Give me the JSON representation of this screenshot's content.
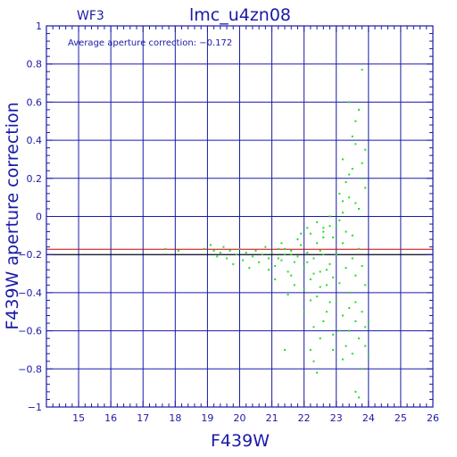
{
  "panel_label": "WF3",
  "annotation": "Average aperture correction:  −0.172",
  "chart_data": {
    "type": "scatter",
    "title": "lmc_u4zn08",
    "xlabel": "F439W",
    "ylabel": "F439W aperture correction",
    "xlim": [
      14,
      26
    ],
    "ylim": [
      -1,
      1
    ],
    "xticks": [
      15,
      16,
      17,
      18,
      19,
      20,
      21,
      22,
      23,
      24,
      25,
      26
    ],
    "yticks": [
      -1,
      -0.8,
      -0.6,
      -0.4,
      -0.2,
      0,
      0.2,
      0.4,
      0.6,
      0.8,
      1
    ],
    "ytick_labels": [
      "−1",
      "−0.8",
      "−0.6",
      "−0.4",
      "−0.2",
      "0",
      "0.2",
      "0.4",
      "0.6",
      "0.8",
      "1"
    ],
    "grid": true,
    "reference_lines": [
      {
        "y": -0.172,
        "color": "#cc0000"
      },
      {
        "y": -0.2,
        "color": "#000000"
      }
    ],
    "points_color": "#22dd22",
    "axis_color": "#1a1aa8",
    "points": [
      [
        17.7,
        -0.17
      ],
      [
        18.1,
        -0.18
      ],
      [
        18.9,
        -0.17
      ],
      [
        19.1,
        -0.15
      ],
      [
        19.2,
        -0.18
      ],
      [
        19.3,
        -0.21
      ],
      [
        19.4,
        -0.19
      ],
      [
        19.5,
        -0.16
      ],
      [
        19.6,
        -0.22
      ],
      [
        19.7,
        -0.18
      ],
      [
        19.8,
        -0.25
      ],
      [
        19.9,
        -0.2
      ],
      [
        20.0,
        -0.17
      ],
      [
        20.1,
        -0.23
      ],
      [
        20.2,
        -0.19
      ],
      [
        20.3,
        -0.27
      ],
      [
        20.4,
        -0.21
      ],
      [
        20.5,
        -0.18
      ],
      [
        20.6,
        -0.24
      ],
      [
        20.7,
        -0.2
      ],
      [
        20.8,
        -0.16
      ],
      [
        20.9,
        -0.22
      ],
      [
        21.0,
        -0.19
      ],
      [
        21.1,
        -0.26
      ],
      [
        21.2,
        -0.17
      ],
      [
        21.3,
        -0.23
      ],
      [
        21.4,
        -0.2
      ],
      [
        21.5,
        -0.29
      ],
      [
        21.6,
        -0.18
      ],
      [
        21.7,
        -0.24
      ],
      [
        21.8,
        -0.21
      ],
      [
        21.9,
        -0.15
      ],
      [
        21.3,
        -0.14
      ],
      [
        21.6,
        -0.31
      ],
      [
        21.8,
        -0.12
      ],
      [
        22.0,
        -0.27
      ],
      [
        22.1,
        -0.19
      ],
      [
        22.2,
        -0.33
      ],
      [
        22.3,
        -0.22
      ],
      [
        22.4,
        -0.14
      ],
      [
        22.5,
        -0.29
      ],
      [
        22.6,
        -0.2
      ],
      [
        22.7,
        -0.36
      ],
      [
        22.8,
        -0.25
      ],
      [
        22.9,
        -0.11
      ],
      [
        22.0,
        -0.38
      ],
      [
        22.2,
        -0.09
      ],
      [
        22.4,
        -0.42
      ],
      [
        22.6,
        -0.06
      ],
      [
        22.8,
        -0.45
      ],
      [
        22.1,
        -0.24
      ],
      [
        22.3,
        -0.3
      ],
      [
        22.5,
        -0.18
      ],
      [
        22.7,
        -0.28
      ],
      [
        22.9,
        -0.32
      ],
      [
        23.0,
        -0.2
      ],
      [
        23.1,
        -0.35
      ],
      [
        23.2,
        -0.14
      ],
      [
        23.3,
        -0.27
      ],
      [
        23.4,
        -0.4
      ],
      [
        23.5,
        -0.22
      ],
      [
        23.6,
        -0.31
      ],
      [
        23.7,
        -0.17
      ],
      [
        23.8,
        -0.26
      ],
      [
        23.9,
        -0.36
      ],
      [
        23.0,
        -0.05
      ],
      [
        23.2,
        0.02
      ],
      [
        23.4,
        -0.48
      ],
      [
        23.6,
        -0.55
      ],
      [
        23.1,
        -0.6
      ],
      [
        23.3,
        -0.68
      ],
      [
        23.5,
        -0.72
      ],
      [
        23.7,
        -0.64
      ],
      [
        23.9,
        -0.58
      ],
      [
        22.6,
        -0.55
      ],
      [
        22.9,
        -0.62
      ],
      [
        23.2,
        -0.75
      ],
      [
        23.8,
        -0.8
      ],
      [
        24.0,
        -0.73
      ],
      [
        23.6,
        -0.92
      ],
      [
        23.7,
        -0.95
      ],
      [
        22.4,
        -0.82
      ],
      [
        22.2,
        -0.7
      ],
      [
        21.4,
        -0.7
      ],
      [
        22.3,
        -0.76
      ],
      [
        23.1,
        0.12
      ],
      [
        23.3,
        0.18
      ],
      [
        23.5,
        0.25
      ],
      [
        23.2,
        0.3
      ],
      [
        23.4,
        0.1
      ],
      [
        23.6,
        0.07
      ],
      [
        23.8,
        0.2
      ],
      [
        23.9,
        0.15
      ],
      [
        23.7,
        0.04
      ],
      [
        23.5,
        0.42
      ],
      [
        23.6,
        0.5
      ],
      [
        23.7,
        0.56
      ],
      [
        23.8,
        0.28
      ],
      [
        23.9,
        0.35
      ],
      [
        23.4,
        0.6
      ],
      [
        23.8,
        0.77
      ],
      [
        23.1,
        -0.02
      ],
      [
        23.3,
        -0.08
      ],
      [
        23.5,
        -0.1
      ],
      [
        22.8,
        -0.05
      ],
      [
        22.6,
        -0.08
      ],
      [
        24.0,
        -0.55
      ],
      [
        23.9,
        -0.68
      ],
      [
        23.6,
        0.38
      ],
      [
        23.4,
        0.22
      ],
      [
        23.2,
        0.08
      ],
      [
        21.5,
        -0.41
      ],
      [
        21.7,
        -0.36
      ],
      [
        20.9,
        -0.28
      ],
      [
        21.1,
        -0.33
      ],
      [
        22.0,
        -0.5
      ],
      [
        22.3,
        -0.58
      ],
      [
        22.5,
        -0.64
      ],
      [
        22.7,
        -0.5
      ],
      [
        22.9,
        -0.7
      ],
      [
        23.0,
        -0.44
      ],
      [
        23.2,
        -0.52
      ],
      [
        23.4,
        -0.6
      ],
      [
        23.6,
        -0.45
      ],
      [
        23.8,
        -0.5
      ],
      [
        21.9,
        -0.09
      ],
      [
        22.1,
        -0.06
      ],
      [
        22.4,
        -0.03
      ],
      [
        22.6,
        -0.11
      ],
      [
        22.8,
        0.0
      ],
      [
        22.2,
        -0.44
      ],
      [
        22.5,
        -0.37
      ],
      [
        21.2,
        -0.22
      ],
      [
        21.4,
        -0.17
      ],
      [
        21.6,
        -0.2
      ]
    ]
  }
}
